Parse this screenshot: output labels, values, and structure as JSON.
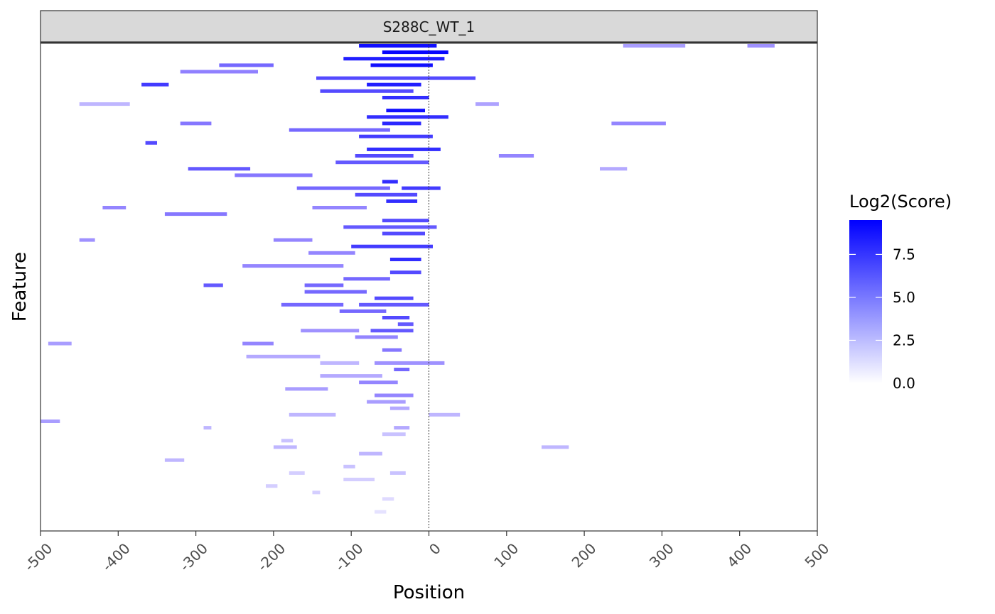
{
  "chart_data": {
    "type": "heatmap",
    "title": "",
    "facet_label": "S288C_WT_1",
    "xlabel": "Position",
    "ylabel": "Feature",
    "xlim": [
      -500,
      500
    ],
    "x_ticks": [
      -500,
      -400,
      -300,
      -200,
      -100,
      0,
      100,
      200,
      300,
      400,
      500
    ],
    "reference_line_x": 0,
    "grid": false,
    "legend": {
      "title": "Log2(Score)",
      "position": "right",
      "range": [
        0,
        9.5
      ],
      "breaks": [
        0.0,
        2.5,
        5.0,
        7.5
      ],
      "break_labels": [
        "0.0",
        "2.5",
        "5.0",
        "7.5"
      ],
      "color_low": "#ffffff",
      "color_high": "#0000ff"
    },
    "segments": [
      {
        "row": 0,
        "start": -90,
        "end": 10,
        "score": 9.0
      },
      {
        "row": 0,
        "start": 250,
        "end": 330,
        "score": 4.0
      },
      {
        "row": 0,
        "start": 410,
        "end": 445,
        "score": 4.5
      },
      {
        "row": 1,
        "start": -60,
        "end": 25,
        "score": 9.3
      },
      {
        "row": 2,
        "start": -110,
        "end": 20,
        "score": 8.5
      },
      {
        "row": 3,
        "start": -270,
        "end": -200,
        "score": 6.0
      },
      {
        "row": 3,
        "start": -75,
        "end": 5,
        "score": 9.0
      },
      {
        "row": 4,
        "start": -320,
        "end": -220,
        "score": 5.2
      },
      {
        "row": 5,
        "start": -145,
        "end": 60,
        "score": 7.0
      },
      {
        "row": 6,
        "start": -370,
        "end": -335,
        "score": 7.5
      },
      {
        "row": 6,
        "start": -80,
        "end": -10,
        "score": 8.5
      },
      {
        "row": 7,
        "start": -140,
        "end": -20,
        "score": 7.0
      },
      {
        "row": 8,
        "start": -60,
        "end": 0,
        "score": 8.0
      },
      {
        "row": 9,
        "start": 60,
        "end": 90,
        "score": 3.8
      },
      {
        "row": 9,
        "start": -450,
        "end": -385,
        "score": 3.0
      },
      {
        "row": 10,
        "start": -55,
        "end": -5,
        "score": 9.0
      },
      {
        "row": 11,
        "start": -80,
        "end": 25,
        "score": 8.0
      },
      {
        "row": 12,
        "start": -320,
        "end": -280,
        "score": 5.5
      },
      {
        "row": 12,
        "start": 235,
        "end": 305,
        "score": 5.0
      },
      {
        "row": 12,
        "start": -60,
        "end": -10,
        "score": 8.2
      },
      {
        "row": 13,
        "start": -180,
        "end": -50,
        "score": 6.0
      },
      {
        "row": 14,
        "start": -90,
        "end": 5,
        "score": 7.5
      },
      {
        "row": 15,
        "start": -365,
        "end": -350,
        "score": 7.0
      },
      {
        "row": 16,
        "start": -80,
        "end": 15,
        "score": 8.0
      },
      {
        "row": 17,
        "start": -95,
        "end": -20,
        "score": 7.0
      },
      {
        "row": 17,
        "start": 90,
        "end": 135,
        "score": 5.0
      },
      {
        "row": 18,
        "start": -120,
        "end": 0,
        "score": 6.5
      },
      {
        "row": 19,
        "start": -310,
        "end": -230,
        "score": 6.5
      },
      {
        "row": 19,
        "start": 220,
        "end": 255,
        "score": 3.5
      },
      {
        "row": 20,
        "start": -250,
        "end": -150,
        "score": 5.5
      },
      {
        "row": 21,
        "start": -60,
        "end": -40,
        "score": 8.0
      },
      {
        "row": 22,
        "start": -170,
        "end": -50,
        "score": 6.0
      },
      {
        "row": 22,
        "start": -35,
        "end": 15,
        "score": 7.5
      },
      {
        "row": 23,
        "start": -95,
        "end": -15,
        "score": 7.0
      },
      {
        "row": 24,
        "start": -55,
        "end": -15,
        "score": 8.0
      },
      {
        "row": 25,
        "start": -150,
        "end": -80,
        "score": 5.0
      },
      {
        "row": 25,
        "start": -420,
        "end": -390,
        "score": 5.0
      },
      {
        "row": 26,
        "start": -340,
        "end": -260,
        "score": 5.5
      },
      {
        "row": 27,
        "start": -60,
        "end": 0,
        "score": 7.0
      },
      {
        "row": 28,
        "start": -110,
        "end": 10,
        "score": 6.5
      },
      {
        "row": 29,
        "start": -60,
        "end": -5,
        "score": 7.0
      },
      {
        "row": 30,
        "start": -200,
        "end": -150,
        "score": 5.0
      },
      {
        "row": 30,
        "start": -450,
        "end": -430,
        "score": 4.5
      },
      {
        "row": 31,
        "start": -100,
        "end": 5,
        "score": 7.5
      },
      {
        "row": 32,
        "start": -155,
        "end": -95,
        "score": 5.0
      },
      {
        "row": 33,
        "start": -50,
        "end": -10,
        "score": 8.0
      },
      {
        "row": 34,
        "start": -240,
        "end": -110,
        "score": 5.0
      },
      {
        "row": 35,
        "start": -50,
        "end": -10,
        "score": 7.0
      },
      {
        "row": 36,
        "start": -110,
        "end": -50,
        "score": 6.0
      },
      {
        "row": 37,
        "start": -160,
        "end": -110,
        "score": 6.0
      },
      {
        "row": 37,
        "start": -290,
        "end": -265,
        "score": 6.5
      },
      {
        "row": 38,
        "start": -160,
        "end": -80,
        "score": 6.0
      },
      {
        "row": 39,
        "start": -70,
        "end": -20,
        "score": 7.0
      },
      {
        "row": 40,
        "start": -190,
        "end": -110,
        "score": 6.0
      },
      {
        "row": 40,
        "start": -90,
        "end": 0,
        "score": 6.5
      },
      {
        "row": 41,
        "start": -115,
        "end": -55,
        "score": 6.0
      },
      {
        "row": 42,
        "start": -60,
        "end": -25,
        "score": 7.0
      },
      {
        "row": 43,
        "start": -40,
        "end": -20,
        "score": 6.5
      },
      {
        "row": 44,
        "start": -165,
        "end": -90,
        "score": 4.5
      },
      {
        "row": 44,
        "start": -75,
        "end": -20,
        "score": 6.5
      },
      {
        "row": 45,
        "start": -95,
        "end": -40,
        "score": 5.0
      },
      {
        "row": 46,
        "start": -240,
        "end": -200,
        "score": 5.0
      },
      {
        "row": 46,
        "start": -490,
        "end": -460,
        "score": 4.0
      },
      {
        "row": 47,
        "start": -60,
        "end": -35,
        "score": 5.5
      },
      {
        "row": 48,
        "start": -235,
        "end": -140,
        "score": 3.5
      },
      {
        "row": 49,
        "start": -140,
        "end": -90,
        "score": 3.0
      },
      {
        "row": 49,
        "start": -70,
        "end": 20,
        "score": 4.5
      },
      {
        "row": 50,
        "start": -45,
        "end": -25,
        "score": 6.0
      },
      {
        "row": 51,
        "start": -140,
        "end": -60,
        "score": 3.5
      },
      {
        "row": 52,
        "start": -90,
        "end": -40,
        "score": 5.0
      },
      {
        "row": 53,
        "start": -185,
        "end": -130,
        "score": 4.0
      },
      {
        "row": 54,
        "start": -70,
        "end": -20,
        "score": 5.0
      },
      {
        "row": 55,
        "start": -80,
        "end": -30,
        "score": 4.0
      },
      {
        "row": 56,
        "start": -50,
        "end": -25,
        "score": 3.5
      },
      {
        "row": 57,
        "start": -180,
        "end": -120,
        "score": 3.0
      },
      {
        "row": 57,
        "start": 0,
        "end": 40,
        "score": 3.0
      },
      {
        "row": 58,
        "start": -500,
        "end": -475,
        "score": 4.0
      },
      {
        "row": 59,
        "start": -290,
        "end": -280,
        "score": 3.0
      },
      {
        "row": 59,
        "start": -45,
        "end": -25,
        "score": 3.5
      },
      {
        "row": 60,
        "start": -60,
        "end": -30,
        "score": 2.5
      },
      {
        "row": 61,
        "start": -190,
        "end": -175,
        "score": 2.5
      },
      {
        "row": 62,
        "start": -200,
        "end": -170,
        "score": 3.0
      },
      {
        "row": 62,
        "start": 145,
        "end": 180,
        "score": 3.0
      },
      {
        "row": 63,
        "start": -90,
        "end": -60,
        "score": 3.0
      },
      {
        "row": 64,
        "start": -340,
        "end": -315,
        "score": 3.0
      },
      {
        "row": 65,
        "start": -110,
        "end": -95,
        "score": 2.5
      },
      {
        "row": 66,
        "start": -180,
        "end": -160,
        "score": 2.0
      },
      {
        "row": 66,
        "start": -50,
        "end": -30,
        "score": 2.5
      },
      {
        "row": 67,
        "start": -110,
        "end": -70,
        "score": 2.0
      },
      {
        "row": 68,
        "start": -210,
        "end": -195,
        "score": 2.0
      },
      {
        "row": 69,
        "start": -150,
        "end": -140,
        "score": 2.0
      },
      {
        "row": 70,
        "start": -60,
        "end": -45,
        "score": 1.5
      },
      {
        "row": 72,
        "start": -70,
        "end": -55,
        "score": 1.2
      }
    ]
  }
}
